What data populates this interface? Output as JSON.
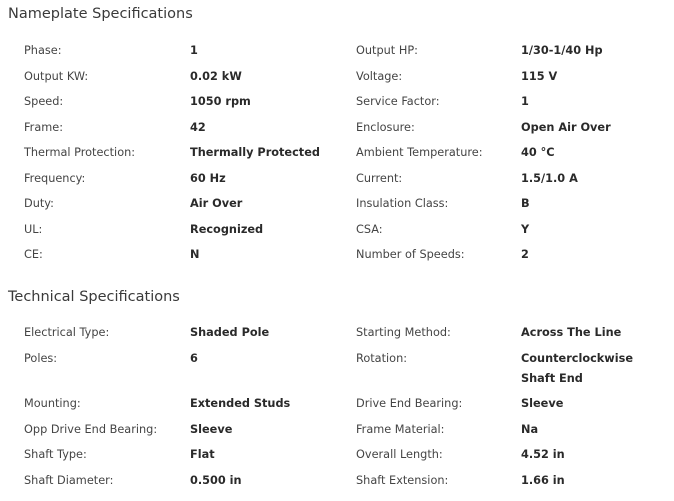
{
  "nameplate": {
    "title": "Nameplate Specifications",
    "rows": [
      {
        "l1": "Phase:",
        "v1": "1",
        "l2": "Output HP:",
        "v2": "1/30-1/40 Hp"
      },
      {
        "l1": "Output KW:",
        "v1": "0.02 kW",
        "l2": "Voltage:",
        "v2": "115 V"
      },
      {
        "l1": "Speed:",
        "v1": "1050 rpm",
        "l2": "Service Factor:",
        "v2": "1"
      },
      {
        "l1": "Frame:",
        "v1": "42",
        "l2": "Enclosure:",
        "v2": "Open Air Over"
      },
      {
        "l1": "Thermal Protection:",
        "v1": "Thermally Protected",
        "l2": "Ambient Temperature:",
        "v2": "40 °C"
      },
      {
        "l1": "Frequency:",
        "v1": "60 Hz",
        "l2": "Current:",
        "v2": "1.5/1.0 A"
      },
      {
        "l1": "Duty:",
        "v1": "Air Over",
        "l2": "Insulation Class:",
        "v2": "B"
      },
      {
        "l1": "UL:",
        "v1": "Recognized",
        "l2": "CSA:",
        "v2": "Y"
      },
      {
        "l1": "CE:",
        "v1": "N",
        "l2": "Number of Speeds:",
        "v2": "2"
      }
    ]
  },
  "technical": {
    "title": "Technical Specifications",
    "rows": [
      {
        "l1": "Electrical Type:",
        "v1": "Shaded Pole",
        "l2": "Starting Method:",
        "v2": "Across The Line"
      },
      {
        "l1": "Poles:",
        "v1": "6",
        "l2": "Rotation:",
        "v2": "Counterclockwise Shaft End"
      },
      {
        "l1": "Mounting:",
        "v1": "Extended Studs",
        "l2": "Drive End Bearing:",
        "v2": "Sleeve"
      },
      {
        "l1": "Opp Drive End Bearing:",
        "v1": "Sleeve",
        "l2": "Frame Material:",
        "v2": "Na"
      },
      {
        "l1": "Shaft Type:",
        "v1": "Flat",
        "l2": "Overall Length:",
        "v2": "4.52 in"
      },
      {
        "l1": "Shaft Diameter:",
        "v1": "0.500 in",
        "l2": "Shaft Extension:",
        "v2": "1.66 in"
      }
    ]
  }
}
